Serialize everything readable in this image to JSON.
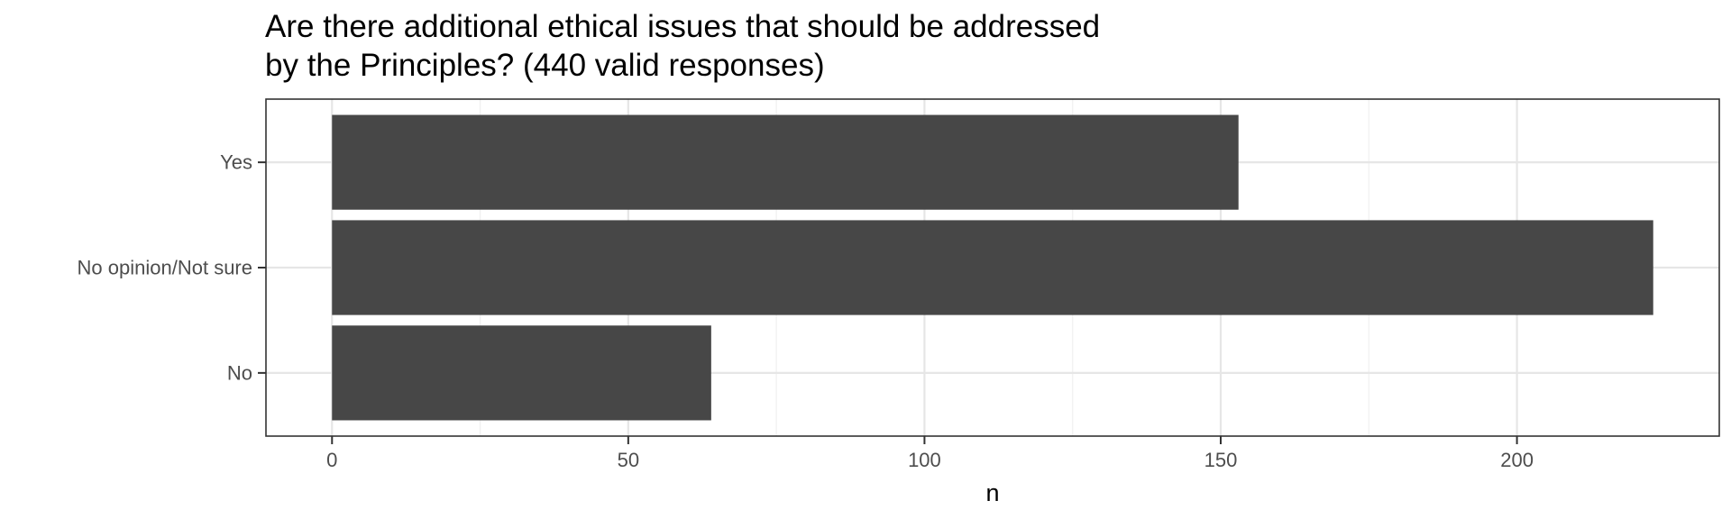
{
  "chart_data": {
    "type": "bar",
    "orientation": "horizontal",
    "title_lines": [
      "Are there additional ethical issues that should be addressed",
      "by the Principles? (440 valid responses)"
    ],
    "categories": [
      "Yes",
      "No opinion/Not sure",
      "No"
    ],
    "values": [
      153,
      223,
      64
    ],
    "xlabel": "n",
    "ylabel": "",
    "xlim": [
      -11.15,
      234.15
    ],
    "xticks": [
      0,
      50,
      100,
      150,
      200
    ],
    "grid": true,
    "bar_color": "#474747"
  }
}
